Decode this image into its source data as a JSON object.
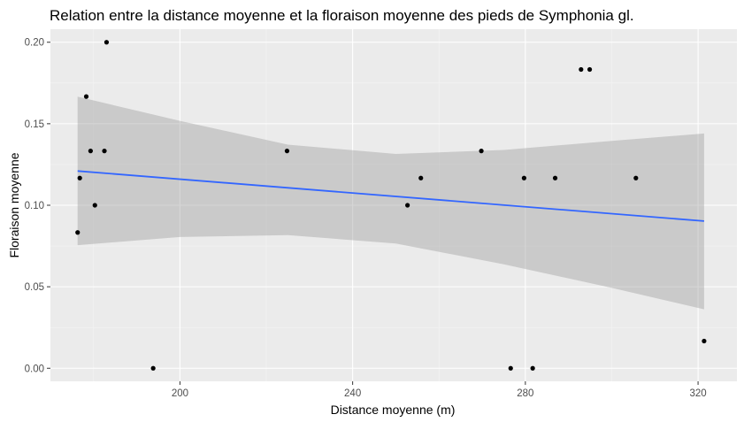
{
  "chart_data": {
    "type": "scatter",
    "title": "Relation entre la distance moyenne et la floraison moyenne des pieds de Symphonia gl.",
    "xlabel": "Distance moyenne (m)",
    "ylabel": "Floraison moyenne",
    "xlim": [
      170,
      329
    ],
    "ylim": [
      -0.008,
      0.208
    ],
    "x_ticks": [
      200,
      240,
      280,
      320
    ],
    "y_ticks": [
      0.0,
      0.05,
      0.1,
      0.15,
      0.2
    ],
    "x_tick_labels": [
      "200",
      "240",
      "280",
      "320"
    ],
    "y_tick_labels": [
      "0.00",
      "0.05",
      "0.10",
      "0.15",
      "0.20"
    ],
    "grid": true,
    "legend": "none",
    "colors": {
      "panel": "#ebebeb",
      "grid_major": "#ffffff",
      "grid_minor": "#f4f4f4",
      "points": "#000000",
      "fit_line": "#3366ff",
      "ribbon": "#999999"
    },
    "points": [
      {
        "x": 176.3,
        "y": 0.0833
      },
      {
        "x": 176.8,
        "y": 0.1167
      },
      {
        "x": 178.3,
        "y": 0.1667
      },
      {
        "x": 179.3,
        "y": 0.1333
      },
      {
        "x": 180.3,
        "y": 0.1
      },
      {
        "x": 182.5,
        "y": 0.1333
      },
      {
        "x": 183.0,
        "y": 0.2
      },
      {
        "x": 193.8,
        "y": 0.0
      },
      {
        "x": 224.8,
        "y": 0.1333
      },
      {
        "x": 252.7,
        "y": 0.1
      },
      {
        "x": 255.8,
        "y": 0.1167
      },
      {
        "x": 269.8,
        "y": 0.1333
      },
      {
        "x": 276.6,
        "y": 0.0
      },
      {
        "x": 279.7,
        "y": 0.1167
      },
      {
        "x": 281.7,
        "y": 0.0
      },
      {
        "x": 286.9,
        "y": 0.1167
      },
      {
        "x": 292.9,
        "y": 0.1833
      },
      {
        "x": 294.9,
        "y": 0.1833
      },
      {
        "x": 305.6,
        "y": 0.1167
      },
      {
        "x": 321.4,
        "y": 0.0167
      }
    ],
    "fit": {
      "method": "lm",
      "x": [
        176.3,
        321.4
      ],
      "y": [
        0.121,
        0.0903
      ]
    },
    "confidence_band": {
      "x": [
        176.3,
        200,
        225,
        250,
        275,
        300,
        321.4
      ],
      "lower": [
        0.0755,
        0.0805,
        0.0817,
        0.0765,
        0.0638,
        0.0493,
        0.0362
      ],
      "upper": [
        0.1666,
        0.1518,
        0.1372,
        0.1315,
        0.1339,
        0.1395,
        0.144
      ]
    }
  }
}
